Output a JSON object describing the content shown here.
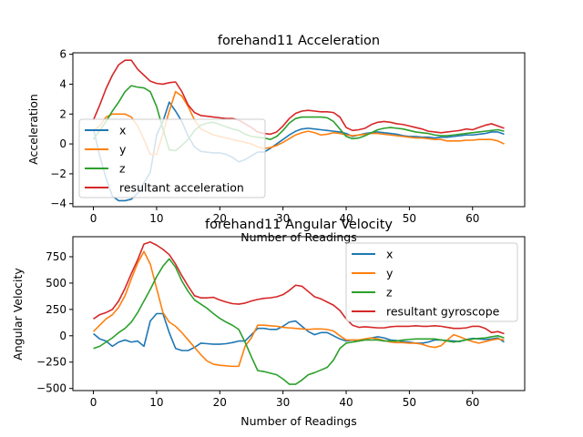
{
  "chart_data": [
    {
      "type": "line",
      "title": "forehand11 Acceleration",
      "xlabel": "Number of Readings",
      "ylabel": "Acceleration",
      "xlim": [
        -3.25,
        68.25
      ],
      "ylim": [
        -4.2,
        6.1
      ],
      "xticks": [
        0,
        10,
        20,
        30,
        40,
        50,
        60
      ],
      "yticks": [
        -4,
        -2,
        0,
        2,
        4,
        6
      ],
      "legend": "lower-left",
      "grid": false,
      "series": [
        {
          "name": "x",
          "color": "#1f77b4",
          "x": [
            0,
            1,
            2,
            3,
            4,
            5,
            6,
            7,
            8,
            9,
            10,
            11,
            12,
            13,
            14,
            15,
            16,
            17,
            18,
            19,
            20,
            21,
            22,
            23,
            24,
            25,
            26,
            27,
            28,
            29,
            30,
            31,
            32,
            33,
            34,
            35,
            36,
            37,
            38,
            39,
            40,
            41,
            42,
            43,
            44,
            45,
            46,
            47,
            48,
            49,
            50,
            51,
            52,
            53,
            54,
            55,
            56,
            57,
            58,
            59,
            60,
            61,
            62,
            63,
            64,
            65
          ],
          "y": [
            1.0,
            -0.8,
            -2.3,
            -3.5,
            -3.8,
            -3.8,
            -3.7,
            -3.3,
            -2.6,
            -1.9,
            0.6,
            1.5,
            2.8,
            2.2,
            1.5,
            0.5,
            -0.2,
            -0.5,
            -0.55,
            -0.6,
            -0.6,
            -0.7,
            -0.9,
            -1.2,
            -1.05,
            -0.8,
            -0.55,
            -0.55,
            -0.3,
            0.0,
            0.3,
            0.6,
            0.85,
            1.0,
            1.05,
            1.0,
            0.95,
            0.9,
            0.85,
            0.8,
            0.7,
            0.5,
            0.6,
            0.7,
            0.75,
            0.8,
            0.75,
            0.7,
            0.65,
            0.55,
            0.5,
            0.5,
            0.45,
            0.45,
            0.4,
            0.45,
            0.45,
            0.5,
            0.55,
            0.6,
            0.6,
            0.65,
            0.7,
            0.8,
            0.8,
            0.65
          ]
        },
        {
          "name": "y",
          "color": "#ff7f0e",
          "x": [
            0,
            1,
            2,
            3,
            4,
            5,
            6,
            7,
            8,
            9,
            10,
            11,
            12,
            13,
            14,
            15,
            16,
            17,
            18,
            19,
            20,
            21,
            22,
            23,
            24,
            25,
            26,
            27,
            28,
            29,
            30,
            31,
            32,
            33,
            34,
            35,
            36,
            37,
            38,
            39,
            40,
            41,
            42,
            43,
            44,
            45,
            46,
            47,
            48,
            49,
            50,
            51,
            52,
            53,
            54,
            55,
            56,
            57,
            58,
            59,
            60,
            61,
            62,
            63,
            64,
            65
          ],
          "y": [
            0.9,
            1.2,
            1.8,
            2.0,
            2.0,
            2.0,
            1.8,
            1.2,
            0.3,
            -0.7,
            -0.7,
            0.7,
            2.2,
            3.5,
            3.2,
            2.5,
            1.6,
            1.0,
            0.8,
            0.6,
            0.5,
            0.4,
            0.3,
            0.2,
            0.1,
            0.0,
            -0.2,
            -0.3,
            -0.25,
            -0.1,
            0.1,
            0.35,
            0.6,
            0.75,
            0.85,
            0.75,
            0.6,
            0.65,
            0.75,
            0.7,
            0.6,
            0.55,
            0.6,
            0.65,
            0.7,
            0.7,
            0.65,
            0.6,
            0.55,
            0.5,
            0.45,
            0.4,
            0.4,
            0.35,
            0.3,
            0.3,
            0.2,
            0.2,
            0.2,
            0.25,
            0.25,
            0.3,
            0.3,
            0.3,
            0.2,
            0.0
          ]
        },
        {
          "name": "z",
          "color": "#2ca02c",
          "x": [
            0,
            1,
            2,
            3,
            4,
            5,
            6,
            7,
            8,
            9,
            10,
            11,
            12,
            13,
            14,
            15,
            16,
            17,
            18,
            19,
            20,
            21,
            22,
            23,
            24,
            25,
            26,
            27,
            28,
            29,
            30,
            31,
            32,
            33,
            34,
            35,
            36,
            37,
            38,
            39,
            40,
            41,
            42,
            43,
            44,
            45,
            46,
            47,
            48,
            49,
            50,
            51,
            52,
            53,
            54,
            55,
            56,
            57,
            58,
            59,
            60,
            61,
            62,
            63,
            64,
            65
          ],
          "y": [
            0.3,
            0.9,
            1.5,
            2.2,
            2.8,
            3.5,
            3.9,
            3.8,
            3.75,
            3.5,
            2.5,
            1.0,
            -0.4,
            -0.45,
            -0.1,
            0.3,
            0.9,
            1.25,
            1.4,
            1.45,
            1.3,
            1.15,
            1.0,
            0.9,
            0.65,
            0.5,
            0.45,
            0.4,
            0.3,
            0.5,
            0.9,
            1.4,
            1.7,
            1.8,
            1.8,
            1.8,
            1.8,
            1.75,
            1.5,
            1.0,
            0.5,
            0.35,
            0.4,
            0.55,
            0.75,
            0.95,
            1.05,
            1.1,
            1.05,
            1.0,
            0.9,
            0.8,
            0.75,
            0.7,
            0.6,
            0.55,
            0.55,
            0.6,
            0.65,
            0.7,
            0.75,
            0.8,
            0.85,
            0.9,
            0.95,
            0.85
          ]
        },
        {
          "name": "resultant acceleration",
          "color": "#d62728",
          "x": [
            0,
            1,
            2,
            3,
            4,
            5,
            6,
            7,
            8,
            9,
            10,
            11,
            12,
            13,
            14,
            15,
            16,
            17,
            18,
            19,
            20,
            21,
            22,
            23,
            24,
            25,
            26,
            27,
            28,
            29,
            30,
            31,
            32,
            33,
            34,
            35,
            36,
            37,
            38,
            39,
            40,
            41,
            42,
            43,
            44,
            45,
            46,
            47,
            48,
            49,
            50,
            51,
            52,
            53,
            54,
            55,
            56,
            57,
            58,
            59,
            60,
            61,
            62,
            63,
            64,
            65
          ],
          "y": [
            1.6,
            2.6,
            3.7,
            4.6,
            5.3,
            5.6,
            5.6,
            5.0,
            4.6,
            4.2,
            4.05,
            4.0,
            4.1,
            4.15,
            3.5,
            2.6,
            2.1,
            1.9,
            1.85,
            1.8,
            1.75,
            1.7,
            1.7,
            1.6,
            1.35,
            1.1,
            0.8,
            0.7,
            0.65,
            0.8,
            1.2,
            1.7,
            2.05,
            2.2,
            2.25,
            2.2,
            2.15,
            2.15,
            2.1,
            1.8,
            1.1,
            0.9,
            0.95,
            1.05,
            1.3,
            1.45,
            1.5,
            1.45,
            1.35,
            1.3,
            1.2,
            1.1,
            1.0,
            0.85,
            0.8,
            0.75,
            0.8,
            0.85,
            0.9,
            1.0,
            0.95,
            1.1,
            1.25,
            1.35,
            1.2,
            1.05
          ]
        }
      ]
    },
    {
      "type": "line",
      "title": "forehand11 Angular Velocity",
      "xlabel": "Number of Readings",
      "ylabel": "Angular Velocity",
      "xlim": [
        -3.25,
        68.25
      ],
      "ylim": [
        -520,
        940
      ],
      "xticks": [
        0,
        10,
        20,
        30,
        40,
        50,
        60
      ],
      "yticks": [
        -500,
        -250,
        0,
        250,
        500,
        750
      ],
      "legend": "upper-right",
      "grid": false,
      "series": [
        {
          "name": "x",
          "color": "#1f77b4",
          "x": [
            0,
            1,
            2,
            3,
            4,
            5,
            6,
            7,
            8,
            9,
            10,
            11,
            12,
            13,
            14,
            15,
            16,
            17,
            18,
            19,
            20,
            21,
            22,
            23,
            24,
            25,
            26,
            27,
            28,
            29,
            30,
            31,
            32,
            33,
            34,
            35,
            36,
            37,
            38,
            39,
            40,
            41,
            42,
            43,
            44,
            45,
            46,
            47,
            48,
            49,
            50,
            51,
            52,
            53,
            54,
            55,
            56,
            57,
            58,
            59,
            60,
            61,
            62,
            63,
            64,
            65
          ],
          "y": [
            20,
            -30,
            -50,
            -100,
            -60,
            -40,
            -60,
            -50,
            -100,
            140,
            210,
            210,
            30,
            -120,
            -140,
            -140,
            -110,
            -70,
            -75,
            -80,
            -80,
            -75,
            -65,
            -50,
            -50,
            10,
            70,
            70,
            60,
            60,
            90,
            130,
            140,
            90,
            40,
            10,
            30,
            30,
            0,
            -30,
            -50,
            -40,
            -50,
            -30,
            -20,
            -10,
            -20,
            -40,
            -45,
            -55,
            -60,
            -70,
            -70,
            -60,
            -40,
            -40,
            -45,
            -50,
            -55,
            -35,
            -25,
            -30,
            -35,
            -30,
            -20,
            -60
          ]
        },
        {
          "name": "y",
          "color": "#ff7f0e",
          "x": [
            0,
            1,
            2,
            3,
            4,
            5,
            6,
            7,
            8,
            9,
            10,
            11,
            12,
            13,
            14,
            15,
            16,
            17,
            18,
            19,
            20,
            21,
            22,
            23,
            24,
            25,
            26,
            27,
            28,
            29,
            30,
            31,
            32,
            33,
            34,
            35,
            36,
            37,
            38,
            39,
            40,
            41,
            42,
            43,
            44,
            45,
            46,
            47,
            48,
            49,
            50,
            51,
            52,
            53,
            54,
            55,
            56,
            57,
            58,
            59,
            60,
            61,
            62,
            63,
            64,
            65
          ],
          "y": [
            40,
            100,
            160,
            200,
            270,
            380,
            540,
            690,
            800,
            680,
            450,
            220,
            130,
            90,
            30,
            -40,
            -110,
            -180,
            -240,
            -270,
            -280,
            -285,
            -290,
            -290,
            -100,
            -20,
            100,
            100,
            95,
            90,
            80,
            75,
            70,
            65,
            60,
            65,
            65,
            60,
            45,
            0,
            -40,
            -40,
            -40,
            -30,
            -20,
            -30,
            -45,
            -60,
            -65,
            -65,
            -70,
            -70,
            -80,
            -100,
            -110,
            -95,
            -40,
            10,
            -10,
            -35,
            -55,
            -70,
            -55,
            -40,
            -30,
            -40
          ]
        },
        {
          "name": "z",
          "color": "#2ca02c",
          "x": [
            0,
            1,
            2,
            3,
            4,
            5,
            6,
            7,
            8,
            9,
            10,
            11,
            12,
            13,
            14,
            15,
            16,
            17,
            18,
            19,
            20,
            21,
            22,
            23,
            24,
            25,
            26,
            27,
            28,
            29,
            30,
            31,
            32,
            33,
            34,
            35,
            36,
            37,
            38,
            39,
            40,
            41,
            42,
            43,
            44,
            45,
            46,
            47,
            48,
            49,
            50,
            51,
            52,
            53,
            54,
            55,
            56,
            57,
            58,
            59,
            60,
            61,
            62,
            63,
            64,
            65
          ],
          "y": [
            -120,
            -100,
            -60,
            -20,
            30,
            70,
            130,
            220,
            330,
            440,
            560,
            660,
            730,
            650,
            520,
            420,
            340,
            300,
            260,
            210,
            165,
            130,
            100,
            60,
            -60,
            -200,
            -330,
            -340,
            -355,
            -370,
            -410,
            -460,
            -460,
            -420,
            -370,
            -350,
            -325,
            -300,
            -230,
            -120,
            -70,
            -60,
            -50,
            -40,
            -40,
            -40,
            -50,
            -50,
            -50,
            -40,
            -35,
            -30,
            -30,
            -30,
            -30,
            -40,
            -50,
            -60,
            -50,
            -40,
            -30,
            -25,
            -20,
            -10,
            0,
            -20
          ]
        },
        {
          "name": "resultant gyroscope",
          "color": "#d62728",
          "x": [
            0,
            1,
            2,
            3,
            4,
            5,
            6,
            7,
            8,
            9,
            10,
            11,
            12,
            13,
            14,
            15,
            16,
            17,
            18,
            19,
            20,
            21,
            22,
            23,
            24,
            25,
            26,
            27,
            28,
            29,
            30,
            31,
            32,
            33,
            34,
            35,
            36,
            37,
            38,
            39,
            40,
            41,
            42,
            43,
            44,
            45,
            46,
            47,
            48,
            49,
            50,
            51,
            52,
            53,
            54,
            55,
            56,
            57,
            58,
            59,
            60,
            61,
            62,
            63,
            64,
            65
          ],
          "y": [
            160,
            200,
            220,
            250,
            330,
            450,
            590,
            720,
            870,
            890,
            860,
            820,
            770,
            680,
            570,
            470,
            380,
            360,
            360,
            365,
            340,
            320,
            305,
            300,
            310,
            330,
            345,
            355,
            360,
            370,
            390,
            430,
            480,
            470,
            420,
            370,
            350,
            320,
            290,
            240,
            160,
            100,
            80,
            85,
            80,
            75,
            75,
            85,
            90,
            90,
            90,
            95,
            90,
            90,
            95,
            90,
            80,
            70,
            70,
            75,
            90,
            90,
            70,
            30,
            40,
            20
          ]
        }
      ]
    }
  ]
}
